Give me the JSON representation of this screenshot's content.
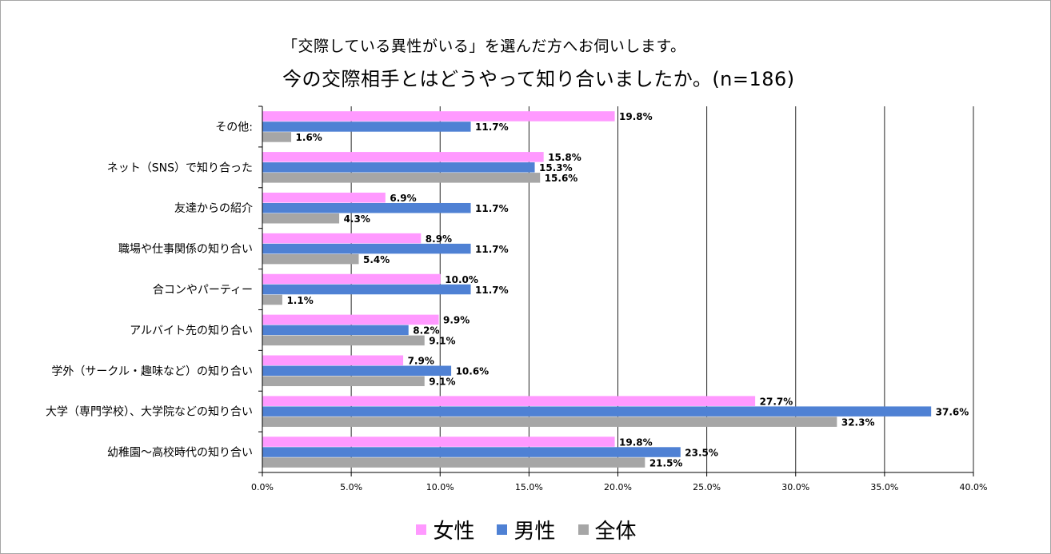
{
  "chart_data": {
    "type": "bar",
    "orientation": "horizontal",
    "title": "「交際している異性がいる」を選んだ方へお伺いします。",
    "subtitle": "今の交際相手とはどうやって知り合いましたか。(n=186)",
    "categories": [
      "その他:",
      "ネット（SNS）で知り合った",
      "友達からの紹介",
      "職場や仕事関係の知り合い",
      "合コンやパーティー",
      "アルバイト先の知り合い",
      "学外（サークル・趣味など）の知り合い",
      "大学（専門学校）、大学院などの知り合い",
      "幼稚園～高校時代の知り合い"
    ],
    "series": [
      {
        "name": "女性",
        "color": "#ff99ff",
        "values": [
          19.8,
          15.8,
          6.9,
          8.9,
          10.0,
          9.9,
          7.9,
          27.7,
          19.8
        ],
        "labels": [
          "19.8%",
          "15.8%",
          "6.9%",
          "8.9%",
          "10.0%",
          "9.9%",
          "7.9%",
          "27.7%",
          "19.8%"
        ]
      },
      {
        "name": "男性",
        "color": "#4f81d4",
        "values": [
          11.7,
          15.3,
          11.7,
          11.7,
          11.7,
          8.2,
          10.6,
          37.6,
          23.5
        ],
        "labels": [
          "11.7%",
          "15.3%",
          "11.7%",
          "11.7%",
          "11.7%",
          "8.2%",
          "10.6%",
          "37.6%",
          "23.5%"
        ]
      },
      {
        "name": "全体",
        "color": "#a6a6a6",
        "values": [
          1.6,
          15.6,
          4.3,
          5.4,
          1.1,
          9.1,
          9.1,
          32.3,
          21.5
        ],
        "labels": [
          "1.6%",
          "15.6%",
          "4.3%",
          "5.4%",
          "1.1%",
          "9.1%",
          "9.1%",
          "32.3%",
          "21.5%"
        ]
      }
    ],
    "xlim": [
      0,
      40
    ],
    "xticks": [
      0,
      5,
      10,
      15,
      20,
      25,
      30,
      35,
      40
    ],
    "xtick_labels": [
      "0.0%",
      "5.0%",
      "10.0%",
      "15.0%",
      "20.0%",
      "25.0%",
      "30.0%",
      "35.0%",
      "40.0%"
    ],
    "grid": true,
    "legend_position": "bottom"
  }
}
